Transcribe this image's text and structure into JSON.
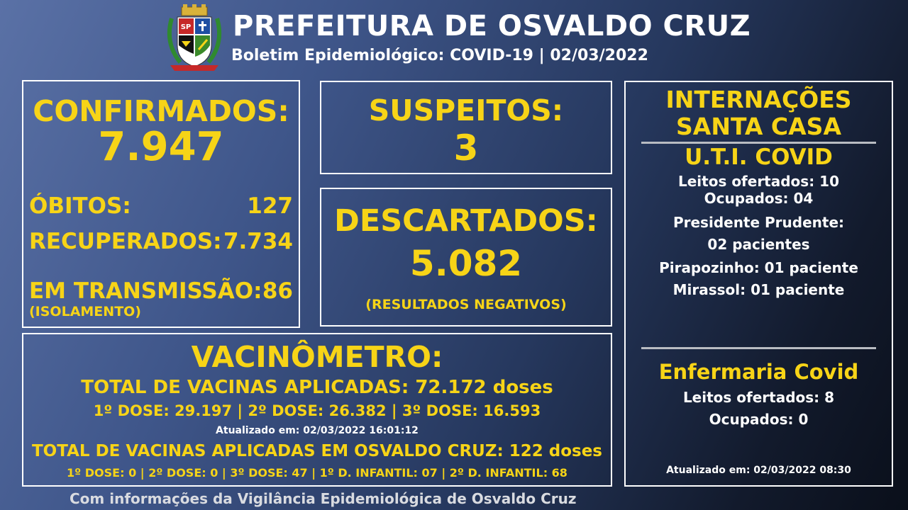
{
  "header": {
    "title": "PREFEITURA DE OSVALDO CRUZ",
    "subtitle": "Boletim Epidemiológico: COVID-19 | 02/03/2022",
    "crest_text": "SP"
  },
  "confirmados": {
    "label": "CONFIRMADOS:",
    "value": "7.947",
    "obitos_label": "ÓBITOS:",
    "obitos_value": "127",
    "recuperados_label": "RECUPERADOS:",
    "recuperados_value": "7.734",
    "transmissao_label": "EM TRANSMISSÃO:",
    "transmissao_value": "86",
    "transmissao_note": "(ISOLAMENTO)"
  },
  "suspeitos": {
    "label": "SUSPEITOS:",
    "value": "3"
  },
  "descartados": {
    "label": "DESCARTADOS:",
    "value": "5.082",
    "note": "(RESULTADOS NEGATIVOS)"
  },
  "internacoes": {
    "title_line1": "INTERNAÇÕES",
    "title_line2": "SANTA CASA",
    "uti_title": "U.T.I. COVID",
    "uti_leitos": "Leitos ofertados: 10",
    "uti_ocupados": "Ocupados: 04",
    "pp_label": "Presidente Prudente:",
    "pp_value": "02 pacientes",
    "pirapozinho": "Pirapozinho: 01 paciente",
    "mirassol": "Mirassol: 01 paciente",
    "enf_title": "Enfermaria Covid",
    "enf_leitos": "Leitos ofertados: 8",
    "enf_ocupados": "Ocupados: 0",
    "updated": "Atualizado em: 02/03/2022 08:30"
  },
  "vacinometro": {
    "title": "VACINÔMETRO:",
    "total": "TOTAL DE VACINAS APLICADAS: 72.172 doses",
    "doses": "1º DOSE: 29.197 | 2º DOSE: 26.382 | 3º DOSE: 16.593",
    "updated": "Atualizado em: 02/03/2022 16:01:12",
    "oc_total": "TOTAL DE VACINAS APLICADAS EM OSVALDO CRUZ: 122 doses",
    "oc_doses": "1º DOSE: 0 | 2º DOSE: 0 | 3º DOSE: 47 | 1º D. INFANTIL: 07 | 2º D. INFANTIL: 68"
  },
  "footer": "Com informações da Vigilância Epidemiológica de Osvaldo Cruz",
  "colors": {
    "accent": "#f7d417",
    "text": "#ffffff",
    "bg_dark": "#0a0f1a",
    "bg_light": "#5a71a6"
  }
}
